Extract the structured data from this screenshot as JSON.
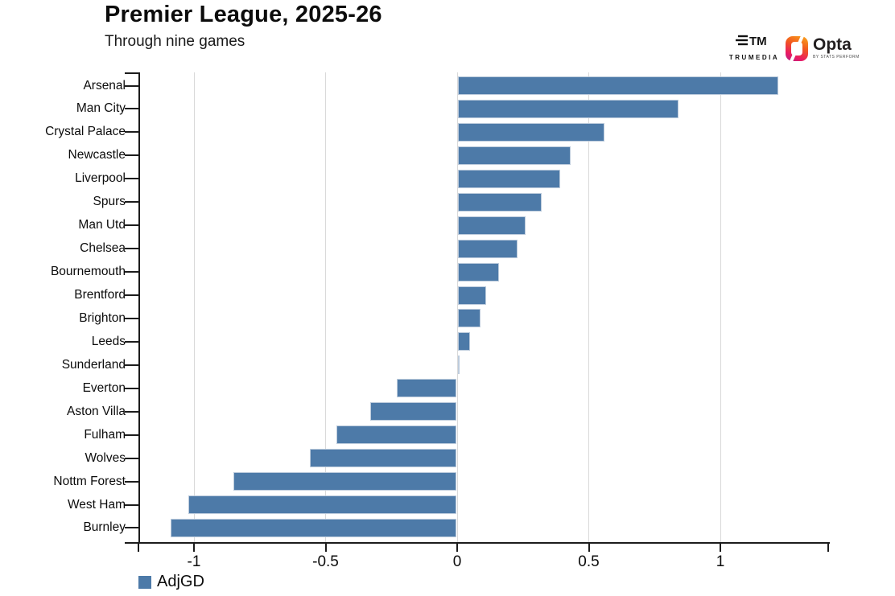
{
  "header": {
    "title": "Premier League, 2025-26",
    "subtitle": "Through nine games"
  },
  "branding": {
    "trumedia_label": "TRUMEDIA",
    "opta_label": "Opta",
    "opta_sublabel": "BY STATS PERFORM"
  },
  "legend": {
    "label": "AdjGD",
    "color": "#4d7aa8"
  },
  "chart_data": {
    "type": "bar",
    "orientation": "horizontal",
    "title": "Premier League, 2025-26",
    "subtitle": "Through nine games",
    "series_name": "AdjGD",
    "categories": [
      "Arsenal",
      "Man City",
      "Crystal Palace",
      "Newcastle",
      "Liverpool",
      "Spurs",
      "Man Utd",
      "Chelsea",
      "Bournemouth",
      "Brentford",
      "Brighton",
      "Leeds",
      "Sunderland",
      "Everton",
      "Aston Villa",
      "Fulham",
      "Wolves",
      "Nottm Forest",
      "West Ham",
      "Burnley"
    ],
    "values": [
      1.22,
      0.84,
      0.56,
      0.43,
      0.39,
      0.32,
      0.26,
      0.23,
      0.16,
      0.11,
      0.09,
      0.05,
      0.01,
      -0.23,
      -0.33,
      -0.46,
      -0.56,
      -0.85,
      -1.02,
      -1.09
    ],
    "x_ticks": [
      -1,
      -0.5,
      0,
      0.5,
      1
    ],
    "x_tick_labels": [
      "-1",
      "-0.5",
      "0",
      "0.5",
      "1"
    ],
    "xlim": [
      -1.21,
      1.41
    ],
    "grid": true,
    "bar_color": "#4d7aa8",
    "bar_border_color": "#bccbdc",
    "grid_color": "#d9d9d9",
    "axis_color": "#1c1c1c",
    "legend_position": "bottom-left"
  }
}
